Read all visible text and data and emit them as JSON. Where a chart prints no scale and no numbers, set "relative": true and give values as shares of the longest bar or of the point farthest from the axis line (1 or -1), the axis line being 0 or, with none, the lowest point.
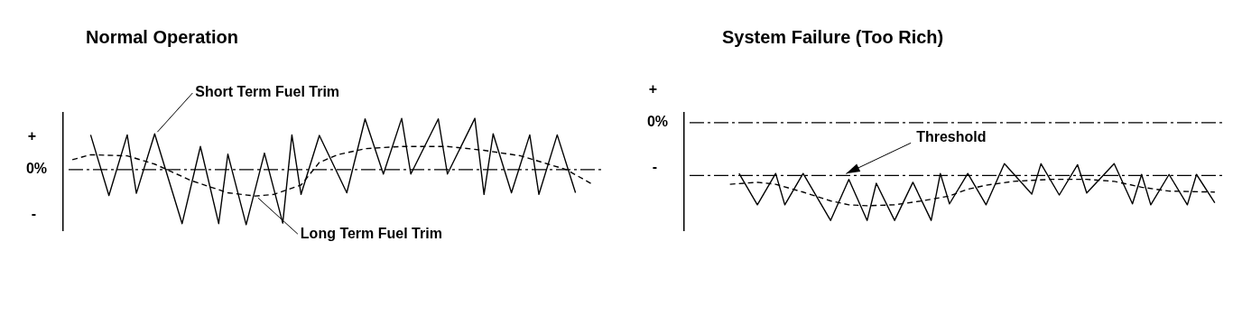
{
  "chart_data": [
    {
      "type": "line",
      "title": "Normal Operation",
      "relative": true,
      "grid": false,
      "legend": false,
      "marker": "none",
      "categories": [
        null,
        null,
        null,
        null,
        null,
        null,
        null,
        null,
        null,
        null,
        null,
        null,
        null,
        null,
        null,
        null,
        null,
        null,
        null,
        null,
        null,
        null,
        null,
        null,
        null,
        null,
        null,
        null,
        null,
        null,
        null,
        null,
        null,
        null,
        null,
        null,
        null,
        null,
        null,
        null,
        null,
        null,
        null,
        null,
        null,
        null,
        null,
        null,
        null,
        null,
        null,
        null,
        null,
        null,
        null,
        null,
        null,
        null,
        null,
        null
      ],
      "series": [
        {
          "name": "Short Term Fuel Trim",
          "color": "#000000",
          "line_style": "solid",
          "values": [
            null,
            null,
            null,
            0.63,
            null,
            -0.47,
            null,
            0.63,
            -0.43,
            null,
            0.65,
            null,
            null,
            -0.98,
            null,
            0.42,
            null,
            -0.98,
            0.28,
            null,
            -1,
            null,
            0.3,
            null,
            -0.97,
            0.63,
            -0.45,
            null,
            0.62,
            null,
            null,
            -0.42,
            null,
            0.92,
            null,
            -0.08,
            null,
            0.93,
            -0.08,
            null,
            null,
            0.92,
            -0.08,
            null,
            null,
            0.93,
            -0.45,
            0.65,
            null,
            -0.42,
            null,
            0.63,
            -0.45,
            null,
            0.63,
            null,
            -0.42,
            null,
            null,
            null
          ]
        },
        {
          "name": "Long Term Fuel Trim",
          "color": "#000000",
          "line_style": "dashed",
          "values": [
            null,
            0.18,
            null,
            0.27,
            null,
            null,
            null,
            0.25,
            null,
            null,
            0.1,
            null,
            null,
            null,
            -0.2,
            null,
            null,
            null,
            -0.42,
            null,
            null,
            -0.48,
            null,
            -0.45,
            null,
            null,
            -0.28,
            null,
            0.13,
            null,
            0.27,
            null,
            null,
            0.38,
            null,
            null,
            null,
            0.42,
            null,
            null,
            null,
            null,
            0.42,
            null,
            null,
            null,
            0.35,
            null,
            null,
            null,
            0.25,
            null,
            null,
            0.1,
            null,
            0,
            null,
            null,
            -0.28,
            null
          ]
        }
      ],
      "ref_lines": [
        {
          "axis": "y",
          "value": 0,
          "label": "0%",
          "line_style": "dashed",
          "color": "#000000"
        }
      ],
      "annotations": [
        "+",
        "-"
      ]
    },
    {
      "type": "line",
      "title": "System Failure (Too Rich)",
      "relative": true,
      "grid": false,
      "legend": false,
      "marker": "none",
      "categories": [
        null,
        null,
        null,
        null,
        null,
        null,
        null,
        null,
        null,
        null,
        null,
        null,
        null,
        null,
        null,
        null,
        null,
        null,
        null,
        null,
        null,
        null,
        null,
        null,
        null,
        null,
        null,
        null,
        null,
        null,
        null,
        null,
        null,
        null,
        null,
        null,
        null,
        null,
        null,
        null,
        null,
        null,
        null,
        null,
        null,
        null,
        null,
        null,
        null,
        null,
        null,
        null,
        null,
        null,
        null,
        null,
        null,
        null,
        null,
        null
      ],
      "series": [
        {
          "color": "#000000",
          "line_style": "solid",
          "values": [
            null,
            null,
            null,
            null,
            null,
            null,
            -0.52,
            null,
            -0.84,
            null,
            -0.52,
            -0.84,
            null,
            -0.52,
            null,
            null,
            -1,
            null,
            -0.58,
            null,
            -1,
            -0.62,
            null,
            -1,
            null,
            -0.61,
            null,
            -1,
            -0.52,
            -0.83,
            null,
            -0.52,
            null,
            -0.84,
            null,
            -0.42,
            null,
            null,
            -0.73,
            -0.42,
            null,
            -0.74,
            null,
            -0.43,
            -0.72,
            null,
            null,
            -0.42,
            null,
            -0.83,
            -0.53,
            -0.84,
            null,
            -0.53,
            null,
            -0.84,
            -0.53,
            null,
            -0.82,
            null
          ]
        },
        {
          "color": "#000000",
          "line_style": "dashed",
          "values": [
            null,
            null,
            null,
            null,
            null,
            -0.63,
            null,
            null,
            -0.61,
            null,
            -0.63,
            null,
            null,
            -0.71,
            null,
            null,
            -0.8,
            null,
            -0.84,
            null,
            -0.85,
            null,
            null,
            -0.84,
            null,
            null,
            -0.8,
            null,
            null,
            -0.75,
            null,
            -0.68,
            null,
            -0.64,
            null,
            null,
            -0.6,
            null,
            null,
            null,
            -0.58,
            null,
            null,
            null,
            -0.58,
            null,
            null,
            -0.6,
            null,
            null,
            -0.66,
            null,
            null,
            -0.7,
            null,
            null,
            null,
            null,
            -0.71,
            null
          ]
        }
      ],
      "ref_lines": [
        {
          "axis": "y",
          "value": 0,
          "label": "0%",
          "line_style": "dashed",
          "color": "#000000"
        },
        {
          "axis": "y",
          "value": -0.54,
          "label": "Threshold",
          "line_style": "dashed",
          "color": "#000000"
        }
      ],
      "annotations": [
        "+",
        "-"
      ]
    }
  ]
}
